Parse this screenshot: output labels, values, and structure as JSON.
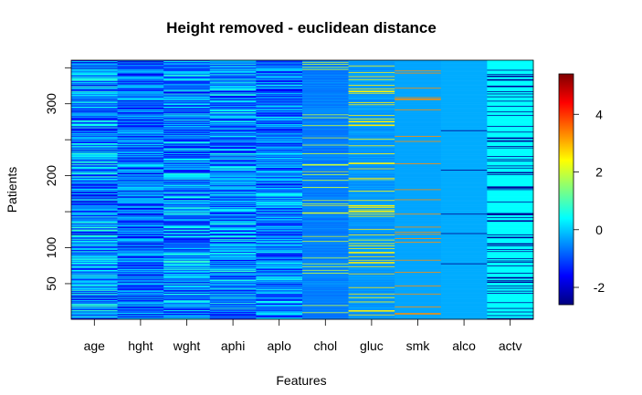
{
  "chart_data": {
    "type": "heatmap",
    "title": "Height removed - euclidean distance",
    "xlabel": "Features",
    "ylabel": "Patients",
    "features": [
      "age",
      "hght",
      "wght",
      "aphi",
      "aplo",
      "chol",
      "gluc",
      "smk",
      "alco",
      "actv"
    ],
    "patients_range": [
      1,
      360
    ],
    "y_ticks": [
      {
        "value": 50,
        "label": "50"
      },
      {
        "value": 100,
        "label": "100"
      },
      {
        "value": 150,
        "label": ""
      },
      {
        "value": 200,
        "label": "200"
      },
      {
        "value": 250,
        "label": ""
      },
      {
        "value": 300,
        "label": "300"
      },
      {
        "value": 350,
        "label": ""
      }
    ],
    "color_scale": {
      "min": -2.6,
      "max": 5.4,
      "ticks": [
        -2,
        0,
        2,
        4
      ],
      "colors": [
        "#00007f",
        "#0000ff",
        "#007fff",
        "#00ffff",
        "#7fff7f",
        "#ffff00",
        "#ff7f00",
        "#ff0000",
        "#7f0000"
      ]
    },
    "columns": [
      {
        "feature": "age",
        "base": -0.5,
        "spread": 0.9,
        "special": 0,
        "specialValue": 0
      },
      {
        "feature": "hght",
        "base": -0.8,
        "spread": 0.7,
        "special": 0,
        "specialValue": 0
      },
      {
        "feature": "wght",
        "base": -0.5,
        "spread": 0.8,
        "special": 0,
        "specialValue": 0
      },
      {
        "feature": "aphi",
        "base": -0.5,
        "spread": 0.8,
        "special": 0,
        "specialValue": 0
      },
      {
        "feature": "aplo",
        "base": -0.6,
        "spread": 0.7,
        "special": 0,
        "specialValue": 0
      },
      {
        "feature": "chol",
        "base": -0.6,
        "spread": 0.1,
        "special": 0.1,
        "specialValue": 2.0
      },
      {
        "feature": "gluc",
        "base": -0.4,
        "spread": 0.1,
        "special": 0.12,
        "specialValue": 2.5
      },
      {
        "feature": "smk",
        "base": -0.3,
        "spread": 0.0,
        "special": 0.09,
        "specialValue": 3.3
      },
      {
        "feature": "alco",
        "base": -0.25,
        "spread": 0.0,
        "special": 0.02,
        "specialValue": -2.5
      },
      {
        "feature": "actv",
        "base": 0.4,
        "spread": 0.0,
        "special": 0.22,
        "specialValue": -2.4
      }
    ]
  }
}
